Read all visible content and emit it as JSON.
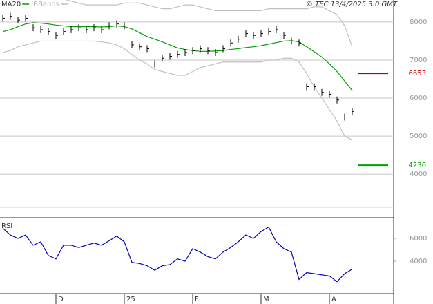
{
  "chart_data": [
    {
      "type": "line",
      "credit": "© TEC 13/4/2025 3:0 GMT",
      "categories": [
        null,
        null,
        null,
        null,
        null,
        null,
        null,
        "D",
        null,
        null,
        null,
        null,
        null,
        null,
        null,
        null,
        "25",
        null,
        null,
        null,
        null,
        null,
        null,
        null,
        null,
        "F",
        null,
        null,
        null,
        null,
        null,
        null,
        null,
        null,
        "M",
        null,
        null,
        null,
        null,
        null,
        null,
        null,
        null,
        "A",
        null,
        null,
        null
      ],
      "ylim": [
        3130,
        8580
      ],
      "yticks": [
        4000,
        5000,
        6000,
        7000,
        8000
      ],
      "grid": true,
      "series": [
        {
          "name": "MA20",
          "color": "#00a000",
          "values": [
            7750,
            7800,
            7880,
            7950,
            7980,
            7970,
            7950,
            7920,
            7900,
            7880,
            7880,
            7880,
            7880,
            7870,
            7880,
            7900,
            7880,
            7820,
            7720,
            7620,
            7550,
            7480,
            7400,
            7320,
            7280,
            7250,
            7230,
            7230,
            7240,
            7250,
            7280,
            7300,
            7330,
            7350,
            7380,
            7420,
            7460,
            7500,
            7510,
            7480,
            7350,
            7220,
            7080,
            6900,
            6700,
            6450,
            6200
          ]
        },
        {
          "name": "BBands",
          "color": "#c0c0c0",
          "values": [
            8700,
            8700,
            8650,
            8600,
            8600,
            8600,
            8600,
            8600,
            8600,
            8550,
            8500,
            8450,
            8450,
            8450,
            8450,
            8450,
            8500,
            8500,
            8500,
            8450,
            8400,
            8350,
            8350,
            8400,
            8450,
            8450,
            8400,
            8350,
            8300,
            8300,
            8300,
            8300,
            8300,
            8300,
            8300,
            8350,
            8350,
            8350,
            8350,
            8350,
            8350,
            8400,
            8400,
            8300,
            8200,
            7900,
            7350
          ],
          "lower": [
            7200,
            7250,
            7350,
            7400,
            7450,
            7500,
            7500,
            7500,
            7500,
            7500,
            7500,
            7500,
            7500,
            7480,
            7450,
            7400,
            7300,
            7150,
            7000,
            6900,
            6750,
            6700,
            6650,
            6600,
            6600,
            6700,
            6800,
            6850,
            6900,
            6950,
            6950,
            6950,
            6950,
            6950,
            6950,
            7000,
            7000,
            7050,
            7050,
            6950,
            6650,
            6300,
            6000,
            5700,
            5400,
            5000,
            4900
          ]
        }
      ],
      "close": [
        8100,
        8150,
        8050,
        8100,
        7850,
        7800,
        7750,
        7650,
        7750,
        7800,
        7850,
        7800,
        7850,
        7800,
        7900,
        7950,
        7900,
        7400,
        7350,
        7300,
        6900,
        7050,
        7100,
        7150,
        7200,
        7250,
        7300,
        7250,
        7200,
        7300,
        7450,
        7550,
        7700,
        7650,
        7700,
        7750,
        7800,
        7650,
        7500,
        7450,
        6300,
        6300,
        6150,
        6100,
        5950,
        5500,
        5650
      ],
      "close_color": "#000000",
      "markers": [
        {
          "value": 6653,
          "color": "#c00000"
        },
        {
          "value": 4236,
          "color": "#00a000"
        }
      ]
    },
    {
      "type": "line",
      "title": "RSI",
      "ylim": [
        11.5,
        76.4
      ],
      "yticks": [
        {
          "value": 40,
          "label": "4000"
        },
        {
          "value": 60,
          "label": "6000"
        }
      ],
      "series": [
        {
          "color": "#0000c0",
          "values": [
            69,
            63,
            60,
            63,
            54,
            57,
            45,
            42,
            54,
            54,
            52,
            54,
            56,
            54,
            58,
            62,
            57,
            39,
            38,
            36,
            32,
            36,
            37,
            42,
            40,
            51,
            48,
            44,
            42,
            48,
            52,
            57,
            63,
            60,
            66,
            70,
            57,
            51,
            48,
            24,
            30,
            29,
            28,
            27,
            22,
            29,
            33
          ]
        }
      ]
    }
  ]
}
